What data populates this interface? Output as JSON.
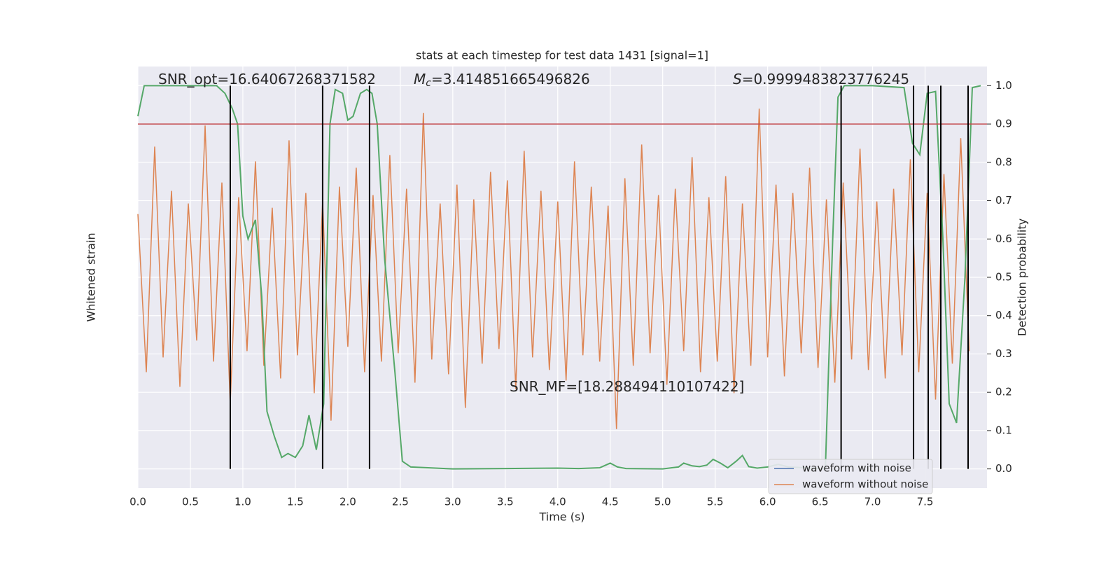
{
  "chart_data": {
    "type": "line",
    "title": "stats at each timestep for test data 1431 [signal=1]",
    "xlabel": "Time (s)",
    "ylabel": "Whitened strain",
    "y2label": "Detection probability",
    "xlim": [
      0,
      8.09
    ],
    "xticks": [
      {
        "value": 0,
        "label": "0.0"
      },
      {
        "value": 0.5,
        "label": "0.5"
      },
      {
        "value": 1,
        "label": "1.0"
      },
      {
        "value": 1.5,
        "label": "1.5"
      },
      {
        "value": 2,
        "label": "2.0"
      },
      {
        "value": 2.5,
        "label": "2.5"
      },
      {
        "value": 3,
        "label": "3.0"
      },
      {
        "value": 3.5,
        "label": "3.5"
      },
      {
        "value": 4,
        "label": "4.0"
      },
      {
        "value": 4.5,
        "label": "4.5"
      },
      {
        "value": 5,
        "label": "5.0"
      },
      {
        "value": 5.5,
        "label": "5.5"
      },
      {
        "value": 6,
        "label": "6.0"
      },
      {
        "value": 6.5,
        "label": "6.5"
      },
      {
        "value": 7,
        "label": "7.0"
      },
      {
        "value": 7.5,
        "label": "7.5"
      }
    ],
    "ylim": [
      -1,
      1
    ],
    "y2lim": [
      -0.05,
      1.05
    ],
    "y2ticks": [
      {
        "value": 0,
        "label": "0.0"
      },
      0.1,
      0.2,
      0.3,
      0.4,
      0.5,
      0.6,
      0.7,
      0.8,
      0.9,
      {
        "value": 1,
        "label": "1.0"
      }
    ],
    "grid": true,
    "legend": "lower right",
    "series": [
      {
        "name": "waveform with noise",
        "color": "#4c72b0"
      },
      {
        "name": "waveform without noise",
        "color": "#dd8452",
        "x": [
          0,
          0.08,
          0.16,
          0.24,
          0.32,
          0.4,
          0.48,
          0.56,
          0.64,
          0.72,
          0.8,
          0.88,
          0.96,
          1.04,
          1.12,
          1.2,
          1.28,
          1.36,
          1.44,
          1.52,
          1.6,
          1.68,
          1.76,
          1.84,
          1.92,
          2,
          2.08,
          2.16,
          2.24,
          2.32,
          2.4,
          2.48,
          2.56,
          2.64,
          2.72,
          2.8,
          2.88,
          2.96,
          3.04,
          3.12,
          3.2,
          3.28,
          3.36,
          3.44,
          3.52,
          3.6,
          3.68,
          3.76,
          3.84,
          3.92,
          4,
          4.08,
          4.16,
          4.24,
          4.32,
          4.4,
          4.48,
          4.56,
          4.64,
          4.72,
          4.8,
          4.88,
          4.96,
          5.04,
          5.12,
          5.2,
          5.28,
          5.36,
          5.44,
          5.52,
          5.6,
          5.68,
          5.76,
          5.84,
          5.92,
          6,
          6.08,
          6.16,
          6.24,
          6.32,
          6.4,
          6.48,
          6.56,
          6.64,
          6.72,
          6.8,
          6.88,
          6.96,
          7.04,
          7.12,
          7.2,
          7.28,
          7.36,
          7.44,
          7.52,
          7.6,
          7.68,
          7.76,
          7.84,
          7.92
        ],
        "values": [
          0.3,
          -0.45,
          0.62,
          -0.38,
          0.41,
          -0.52,
          0.35,
          -0.3,
          0.72,
          -0.4,
          0.45,
          -0.6,
          0.38,
          -0.35,
          0.55,
          -0.42,
          0.33,
          -0.48,
          0.65,
          -0.37,
          0.4,
          -0.55,
          0.36,
          -0.68,
          0.43,
          -0.33,
          0.52,
          -0.45,
          0.39,
          -0.4,
          0.58,
          -0.36,
          0.42,
          -0.5,
          0.78,
          -0.39,
          0.35,
          -0.46,
          0.44,
          -0.62,
          0.37,
          -0.41,
          0.5,
          -0.34,
          0.46,
          -0.53,
          0.6,
          -0.38,
          0.41,
          -0.44,
          0.36,
          -0.49,
          0.55,
          -0.37,
          0.43,
          -0.4,
          0.34,
          -0.72,
          0.47,
          -0.42,
          0.63,
          -0.36,
          0.39,
          -0.51,
          0.42,
          -0.35,
          0.57,
          -0.45,
          0.38,
          -0.4,
          0.48,
          -0.55,
          0.35,
          -0.42,
          0.8,
          -0.38,
          0.44,
          -0.47,
          0.4,
          -0.36,
          0.52,
          -0.43,
          0.37,
          -0.5,
          0.45,
          -0.39,
          0.61,
          -0.44,
          0.36,
          -0.48,
          0.42,
          -0.37,
          0.56,
          -0.45,
          0.4,
          -0.58,
          0.49,
          -0.41,
          0.66,
          -0.35
        ]
      },
      {
        "axis": "y2",
        "color": "#55a868",
        "x": [
          0,
          0.06,
          0.5,
          0.75,
          0.83,
          0.9,
          0.95,
          1,
          1.05,
          1.12,
          1.18,
          1.23,
          1.3,
          1.37,
          1.43,
          1.5,
          1.57,
          1.63,
          1.7,
          1.77,
          1.83,
          1.88,
          1.95,
          2,
          2.05,
          2.12,
          2.18,
          2.23,
          2.28,
          2.35,
          2.45,
          2.52,
          2.6,
          3,
          3.5,
          4,
          4.2,
          4.4,
          4.5,
          4.57,
          4.65,
          5,
          5.15,
          5.2,
          5.28,
          5.35,
          5.42,
          5.48,
          5.55,
          5.62,
          5.7,
          5.76,
          5.82,
          5.9,
          6,
          6.1,
          6.2,
          6.55,
          6.62,
          6.67,
          6.73,
          7,
          7.3,
          7.38,
          7.45,
          7.52,
          7.6,
          7.67,
          7.73,
          7.8,
          7.88,
          7.95,
          8.03
        ],
        "values": [
          0.92,
          1,
          1,
          1,
          0.98,
          0.94,
          0.9,
          0.66,
          0.6,
          0.65,
          0.45,
          0.15,
          0.085,
          0.03,
          0.04,
          0.03,
          0.06,
          0.14,
          0.05,
          0.17,
          0.9,
          0.99,
          0.98,
          0.91,
          0.92,
          0.98,
          0.99,
          0.98,
          0.9,
          0.55,
          0.25,
          0.02,
          0.005,
          0,
          0.001,
          0.002,
          0.001,
          0.003,
          0.015,
          0.005,
          0.001,
          0,
          0.005,
          0.015,
          0.008,
          0.006,
          0.01,
          0.025,
          0.015,
          0.003,
          0.02,
          0.035,
          0.006,
          0.002,
          0.005,
          0.012,
          0.005,
          0,
          0.6,
          0.97,
          1,
          1,
          0.995,
          0.85,
          0.82,
          0.98,
          0.985,
          0.6,
          0.17,
          0.12,
          0.5,
          0.995,
          1
        ]
      }
    ],
    "threshold": {
      "value": 0.9,
      "color": "#c44e52"
    },
    "vlines": [
      0.88,
      1.76,
      2.207,
      6.7,
      7.39,
      7.53,
      7.65,
      7.91
    ],
    "annotations": [
      {
        "text": "SNR_opt=16.64067268371582"
      },
      {
        "symbol": "M",
        "subscript": "c",
        "text": "=3.414851665496826"
      },
      {
        "symbol": "S",
        "text": "=0.9999483823776245"
      },
      {
        "text": "SNR_MF=[18.288494110107422]"
      }
    ]
  }
}
